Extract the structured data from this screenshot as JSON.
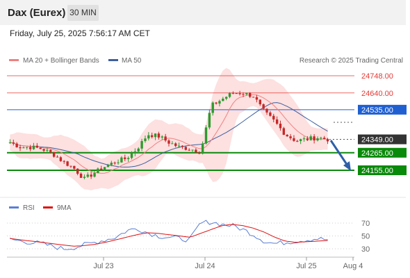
{
  "header": {
    "title": "Dax (Eurex)",
    "timeframe": "30 MIN",
    "datetime": "Friday, July 25, 2025 7:56:17 AM CET"
  },
  "legend": {
    "ma20_bb": "MA 20 + Bollinger Bands",
    "ma50": "MA 50",
    "credit": "Research © 2025 Trading Central",
    "rsi": "RSI",
    "ma9": "9MA"
  },
  "colors": {
    "candle_up": "#2e9a2e",
    "candle_down": "#c62828",
    "ma20": "#f08080",
    "ma50": "#3d5f9e",
    "bands_fill": "#fde0e0",
    "resistance": "#e53935",
    "pivot": "#1f5fd1",
    "support": "#0a8a0a",
    "rsi": "#5b7fd6",
    "ma9": "#e01010",
    "arrow": "#2f5fa8"
  },
  "chart_data": {
    "type": "candlestick",
    "x_ticks": [
      "Jul 23",
      "Jul 24",
      "Jul 25",
      "Aug 4"
    ],
    "y_labels": [
      "24748.00",
      "24640.00",
      "24535.00",
      "24349.00",
      "24265.00",
      "24155.00"
    ],
    "levels": [
      {
        "value": 24748,
        "label": "24748.00",
        "kind": "resistance"
      },
      {
        "value": 24640,
        "label": "24640.00",
        "kind": "resistance"
      },
      {
        "value": 24535,
        "label": "24535.00",
        "kind": "pivot"
      },
      {
        "value": 24349,
        "label": "24349.00",
        "kind": "last"
      },
      {
        "value": 24265,
        "label": "24265.00",
        "kind": "support"
      },
      {
        "value": 24155,
        "label": "24155.00",
        "kind": "support"
      }
    ],
    "price_series_approx": [
      24330,
      24300,
      24300,
      24290,
      24260,
      24210,
      24170,
      24100,
      24140,
      24180,
      24210,
      24230,
      24290,
      24380,
      24370,
      24330,
      24300,
      24290,
      24270,
      24560,
      24600,
      24640,
      24640,
      24620,
      24520,
      24460,
      24380,
      24340,
      24350,
      24360,
      24349
    ],
    "rsi": {
      "y_ticks": [
        70,
        50,
        30
      ],
      "series": [
        45,
        42,
        40,
        38,
        34,
        30,
        32,
        36,
        40,
        44,
        48,
        58,
        62,
        55,
        50,
        48,
        46,
        44,
        70,
        72,
        68,
        66,
        60,
        52,
        42,
        38,
        40,
        42,
        44,
        46,
        44
      ],
      "ma9": [
        46,
        44,
        42,
        40,
        38,
        36,
        34,
        35,
        37,
        40,
        44,
        48,
        52,
        55,
        54,
        52,
        50,
        48,
        54,
        60,
        66,
        68,
        66,
        62,
        56,
        48,
        42,
        40,
        41,
        42,
        43
      ]
    }
  }
}
